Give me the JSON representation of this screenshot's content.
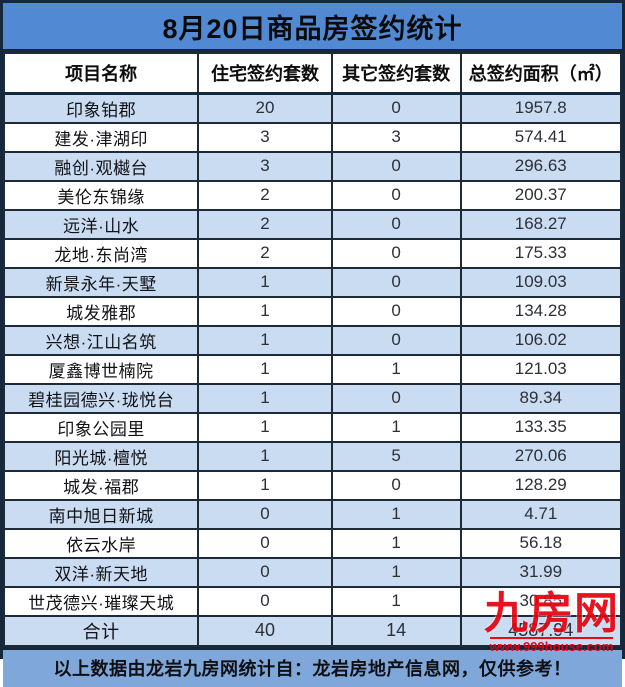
{
  "chart_data": {
    "type": "table",
    "title": "8月20日商品房签约统计",
    "columns": [
      "项目名称",
      "住宅签约套数",
      "其它签约套数",
      "总签约面积（㎡）"
    ],
    "rows": [
      [
        "印象铂郡",
        20,
        0,
        1957.8
      ],
      [
        "建发·津湖印",
        3,
        3,
        574.41
      ],
      [
        "融创·观樾台",
        3,
        0,
        296.63
      ],
      [
        "美伦东锦缘",
        2,
        0,
        200.37
      ],
      [
        "远洋·山水",
        2,
        0,
        168.27
      ],
      [
        "龙地·东尚湾",
        2,
        0,
        175.33
      ],
      [
        "新景永年·天墅",
        1,
        0,
        109.03
      ],
      [
        "城发雅郡",
        1,
        0,
        134.28
      ],
      [
        "兴想·江山名筑",
        1,
        0,
        106.02
      ],
      [
        "厦鑫博世楠院",
        1,
        1,
        121.03
      ],
      [
        "碧桂园德兴·珑悦台",
        1,
        0,
        89.34
      ],
      [
        "印象公园里",
        1,
        1,
        133.35
      ],
      [
        "阳光城·檀悦",
        1,
        5,
        270.06
      ],
      [
        "城发·福郡",
        1,
        0,
        128.29
      ],
      [
        "南中旭日新城",
        0,
        1,
        4.71
      ],
      [
        "依云水岸",
        0,
        1,
        56.18
      ],
      [
        "双洋·新天地",
        0,
        1,
        31.99
      ],
      [
        "世茂德兴·璀璨天城",
        0,
        1,
        30.85
      ]
    ],
    "total_row": [
      "合计",
      40,
      14,
      4587.94
    ],
    "note": "以上数据由龙岩九房网统计自：龙岩房地产信息网，仅供参考！",
    "layout_hints": {
      "striped": true,
      "first_row_shaded": true,
      "grid": true
    }
  },
  "watermark": {
    "logo": "九房网",
    "url": "www.999house.com"
  },
  "colors": {
    "title_bg": "#5289D3",
    "row_alt_bg": "#C9DCF2",
    "footer_bg": "#7FA7DA",
    "grid_border": "#1E2A38",
    "outer_border": "#16293C",
    "watermark_red": "#E8000D",
    "text": "#121217"
  }
}
